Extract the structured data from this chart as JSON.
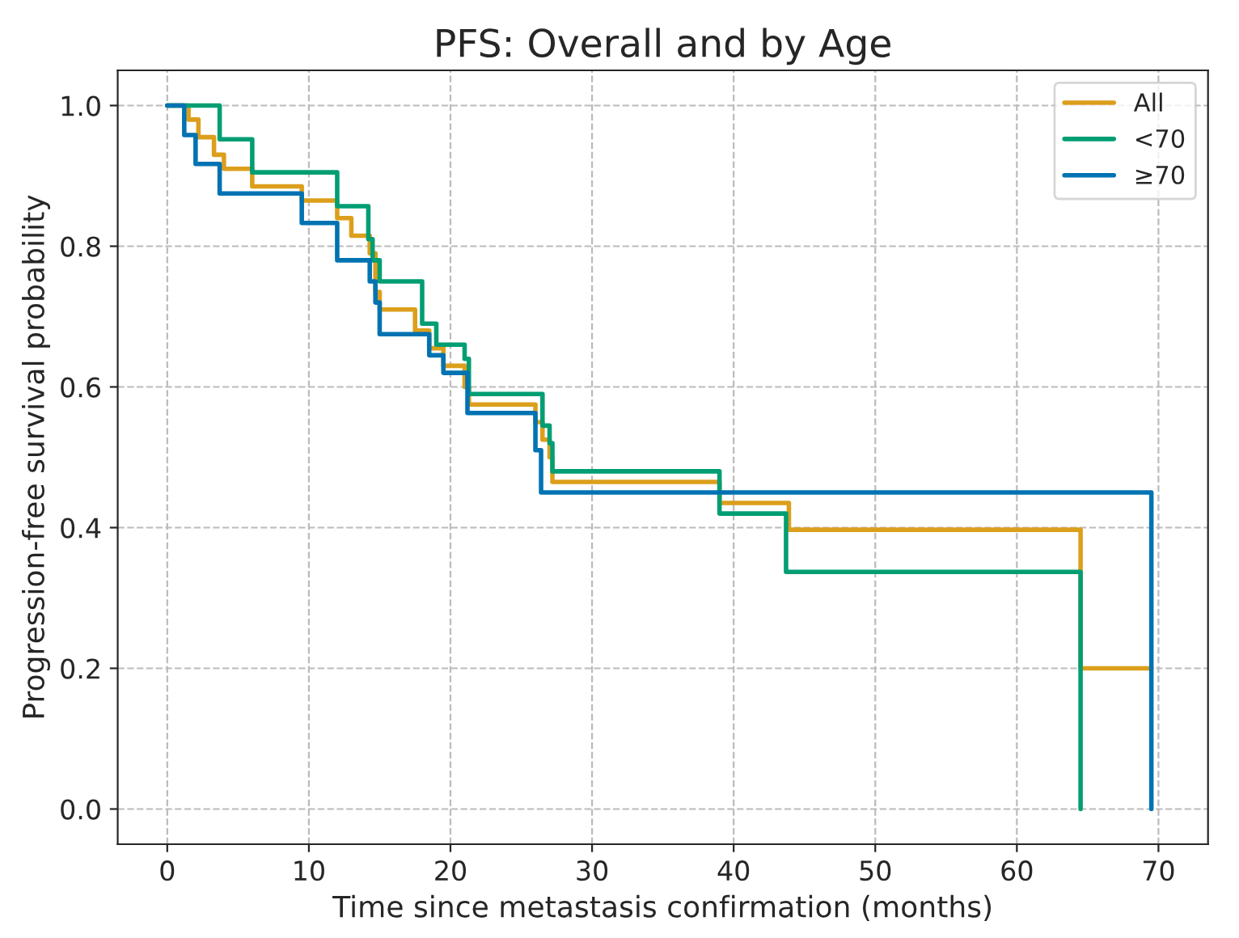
{
  "chart_data": {
    "type": "step",
    "title": "PFS: Overall and by Age",
    "xlabel": "Time since metastasis confirmation (months)",
    "ylabel": "Progression-free survival probability",
    "series": [
      {
        "name": "All",
        "color": "#dc9f1c",
        "x": [
          0,
          1.5,
          2.2,
          3.3,
          4,
          6,
          9.5,
          12,
          13,
          14.3,
          14.7,
          15,
          17.5,
          18.5,
          19.5,
          21,
          21.3,
          26,
          26.5,
          27,
          27.2,
          39,
          43.9,
          64.5,
          69.5
        ],
        "values": [
          1.0,
          0.98,
          0.955,
          0.93,
          0.91,
          0.885,
          0.865,
          0.84,
          0.815,
          0.79,
          0.735,
          0.71,
          0.68,
          0.655,
          0.63,
          0.6,
          0.575,
          0.55,
          0.525,
          0.5,
          0.465,
          0.435,
          0.397,
          0.2,
          0.2
        ]
      },
      {
        "name": "<70",
        "color": "#029e73",
        "x": [
          0,
          3.7,
          6,
          12,
          14.2,
          14.5,
          15,
          18,
          19,
          21,
          21.3,
          26.3,
          26.5,
          27,
          27.2,
          39,
          43.7,
          64.5
        ],
        "values": [
          1.0,
          0.952,
          0.905,
          0.857,
          0.81,
          0.78,
          0.75,
          0.69,
          0.66,
          0.64,
          0.59,
          0.59,
          0.545,
          0.52,
          0.48,
          0.42,
          0.337,
          0.0
        ]
      },
      {
        "name": "≥70",
        "color": "#0173b2",
        "x": [
          0,
          1.2,
          2,
          3.7,
          9.5,
          12,
          14.3,
          14.7,
          15,
          18.5,
          19.5,
          21.2,
          26,
          26.4,
          69.5
        ],
        "values": [
          1.0,
          0.958,
          0.917,
          0.875,
          0.833,
          0.78,
          0.75,
          0.72,
          0.675,
          0.645,
          0.62,
          0.563,
          0.51,
          0.45,
          0.0
        ]
      }
    ],
    "xlim": [
      -3.5,
      73.5
    ],
    "ylim": [
      -0.05,
      1.05
    ],
    "xticks": [
      0,
      10,
      20,
      30,
      40,
      50,
      60,
      70
    ],
    "yticks": [
      {
        "value": 0,
        "label": "0.0"
      },
      {
        "value": 0.2,
        "label": "0.2"
      },
      {
        "value": 0.4,
        "label": "0.4"
      },
      {
        "value": 0.6,
        "label": "0.6"
      },
      {
        "value": 0.8,
        "label": "0.8"
      },
      {
        "value": 1.0,
        "label": "1.0"
      }
    ],
    "grid": true,
    "legend": "top right",
    "line_style": "solid"
  }
}
